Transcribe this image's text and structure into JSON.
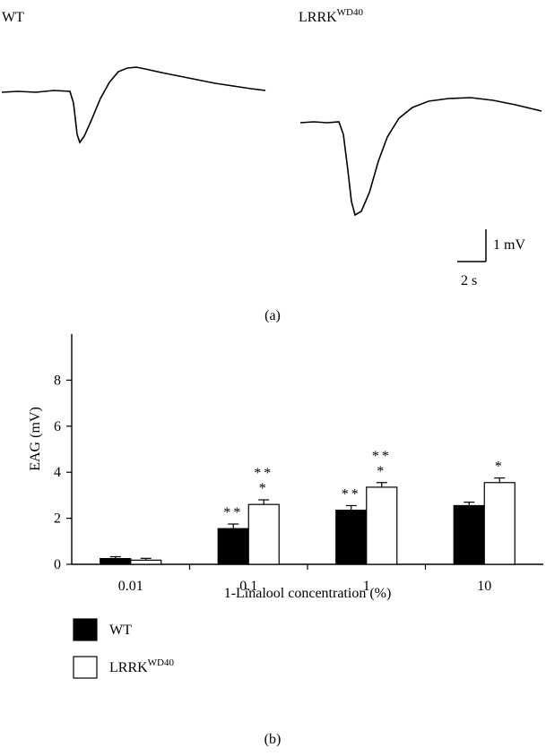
{
  "panel_a": {
    "label": "(a)",
    "wt_label": "WT",
    "mutant_label_base": "LRRK",
    "mutant_label_sup": "WD40",
    "scale_y": "1 mV",
    "scale_x": "2 s"
  },
  "panel_b": {
    "label": "(b)"
  },
  "chart_data": {
    "type": "bar",
    "xlabel": "1-Linalool concentration (%)",
    "ylabel": "EAG (mV)",
    "ylim": [
      0,
      10
    ],
    "yticks": [
      0,
      2,
      4,
      6,
      8
    ],
    "categories": [
      "0.01",
      "0.1",
      "1",
      "10"
    ],
    "series": [
      {
        "name": "WT",
        "color": "#000000",
        "values": [
          0.25,
          1.55,
          2.35,
          2.55
        ],
        "errors": [
          0.08,
          0.2,
          0.2,
          0.15
        ]
      },
      {
        "name": "LRRK^WD40",
        "color": "#ffffff",
        "values": [
          0.18,
          2.6,
          3.35,
          3.55
        ],
        "errors": [
          0.08,
          0.2,
          0.2,
          0.2
        ]
      }
    ],
    "annotations": [
      {
        "category": 1,
        "series": 0,
        "lines": [
          "**"
        ]
      },
      {
        "category": 1,
        "series": 1,
        "lines": [
          "**",
          "*"
        ]
      },
      {
        "category": 2,
        "series": 0,
        "lines": [
          "**"
        ]
      },
      {
        "category": 2,
        "series": 1,
        "lines": [
          "**",
          "*"
        ]
      },
      {
        "category": 3,
        "series": 1,
        "lines": [
          "*"
        ]
      }
    ],
    "legend": {
      "placement": "bottom-left",
      "items": [
        {
          "base": "WT",
          "sup": ""
        },
        {
          "base": "LRRK",
          "sup": "WD40"
        }
      ]
    }
  }
}
